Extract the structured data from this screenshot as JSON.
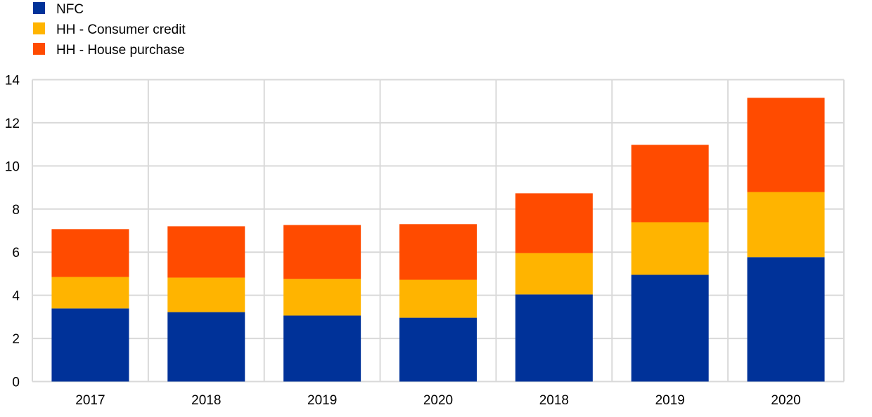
{
  "chart_data": {
    "type": "bar",
    "stacked": true,
    "title": "",
    "xlabel": "",
    "ylabel": "",
    "ylim": [
      0,
      14
    ],
    "yticks": [
      0,
      2,
      4,
      6,
      8,
      10,
      12,
      14
    ],
    "grid": true,
    "legend_position": "top-left",
    "categories": [
      "2017",
      "2018",
      "2019",
      "2020",
      "2018",
      "2019",
      "2020"
    ],
    "series": [
      {
        "name": "NFC",
        "color": "#003299",
        "values": [
          3.39,
          3.22,
          3.06,
          2.96,
          4.04,
          4.95,
          5.77
        ]
      },
      {
        "name": "HH - Consumer credit",
        "color": "#FFB400",
        "values": [
          1.46,
          1.6,
          1.7,
          1.76,
          1.92,
          2.44,
          3.02
        ]
      },
      {
        "name": "HH - House purchase",
        "color": "#FF4B00",
        "values": [
          2.22,
          2.38,
          2.5,
          2.58,
          2.77,
          3.59,
          4.37
        ]
      }
    ]
  }
}
